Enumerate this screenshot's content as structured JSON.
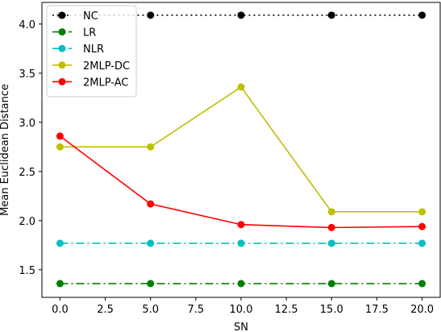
{
  "chart_data": {
    "type": "line",
    "title": "",
    "xlabel": "SN",
    "ylabel": "Mean Euclidean Distance",
    "x": [
      0,
      5,
      10,
      15,
      20
    ],
    "xlim": [
      -1.0,
      21.0
    ],
    "ylim": [
      1.22,
      4.22
    ],
    "x_ticks": [
      "0.0",
      "2.5",
      "5.0",
      "7.5",
      "10.0",
      "12.5",
      "15.0",
      "17.5",
      "20.0"
    ],
    "y_ticks": [
      "1.5",
      "2.0",
      "2.5",
      "3.0",
      "3.5",
      "4.0"
    ],
    "grid": false,
    "legend_position": "top-left",
    "series": [
      {
        "name": "NC",
        "values": [
          4.09,
          4.09,
          4.09,
          4.09,
          4.09
        ],
        "color": "#000000",
        "dash": "dotted",
        "marker": "circle"
      },
      {
        "name": "LR",
        "values": [
          1.36,
          1.36,
          1.36,
          1.36,
          1.36
        ],
        "color": "#008000",
        "dash": "dashdot",
        "marker": "circle"
      },
      {
        "name": "NLR",
        "values": [
          1.77,
          1.77,
          1.77,
          1.77,
          1.77
        ],
        "color": "#00bfbf",
        "dash": "dashdot",
        "marker": "circle"
      },
      {
        "name": "2MLP-DC",
        "values": [
          2.75,
          2.75,
          3.36,
          2.09,
          2.09
        ],
        "color": "#bfbf00",
        "dash": "solid",
        "marker": "circle"
      },
      {
        "name": "2MLP-AC",
        "values": [
          2.86,
          2.17,
          1.96,
          1.93,
          1.94
        ],
        "color": "#ff0000",
        "dash": "solid",
        "marker": "circle"
      }
    ]
  }
}
